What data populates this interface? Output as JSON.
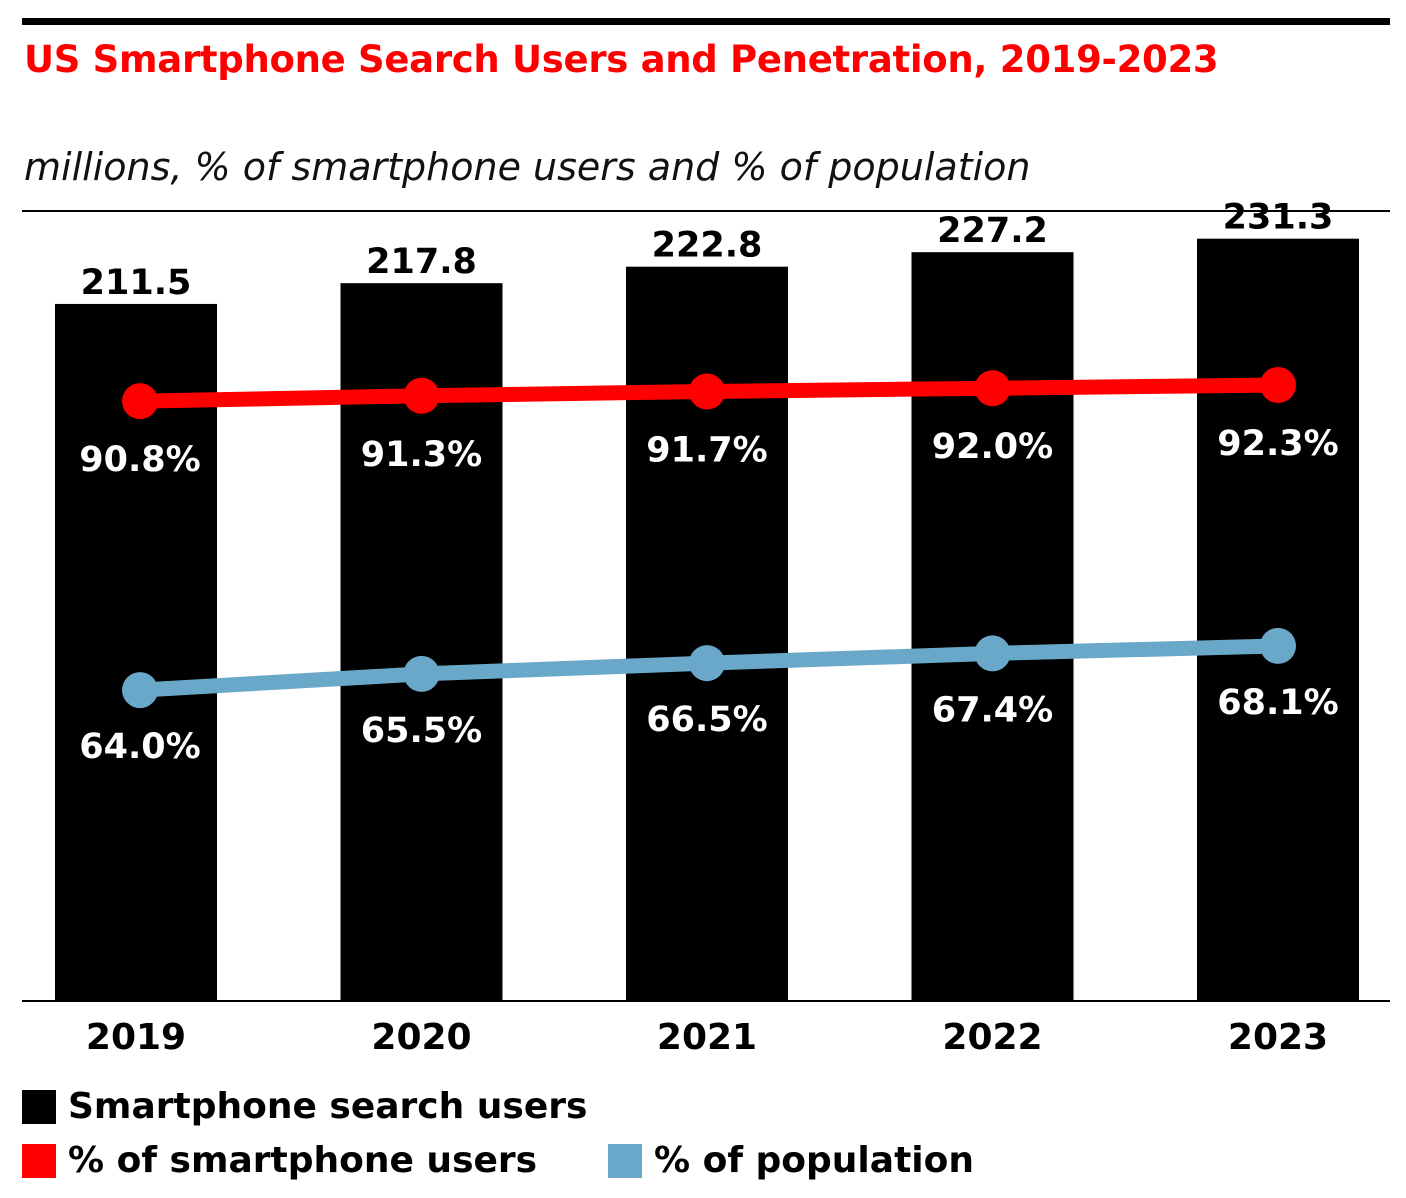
{
  "chart_data": {
    "type": "bar",
    "title": "US Smartphone Search Users and Penetration, 2019-2023",
    "subtitle": "millions, % of smartphone users and % of population",
    "categories": [
      "2019",
      "2020",
      "2021",
      "2022",
      "2023"
    ],
    "series": [
      {
        "name": "Smartphone search users",
        "type": "bar",
        "color": "#000000",
        "values": [
          211.5,
          217.8,
          222.8,
          227.2,
          231.3
        ],
        "labels": [
          "211.5",
          "217.8",
          "222.8",
          "227.2",
          "231.3"
        ]
      },
      {
        "name": "% of smartphone users",
        "type": "line",
        "color": "#ff0000",
        "values": [
          90.8,
          91.3,
          91.7,
          92.0,
          92.3
        ],
        "labels": [
          "90.8%",
          "91.3%",
          "91.7%",
          "92.0%",
          "92.3%"
        ]
      },
      {
        "name": "% of population",
        "type": "line",
        "color": "#6aa8c9",
        "values": [
          64.0,
          65.5,
          66.5,
          67.4,
          68.1
        ],
        "labels": [
          "64.0%",
          "65.5%",
          "66.5%",
          "67.4%",
          "68.1%"
        ]
      }
    ],
    "bar_axis": {
      "min": 0,
      "max": 240
    },
    "percent_axis": {
      "min": 0,
      "max": 100
    },
    "title_color": "#ff0000",
    "grid": false,
    "legend_position": "bottom-left"
  }
}
